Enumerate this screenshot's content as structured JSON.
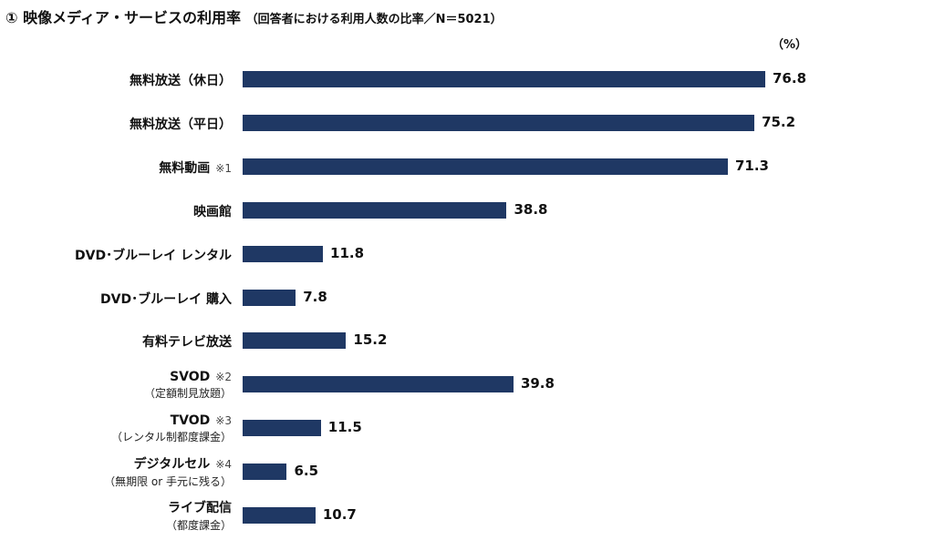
{
  "chart_data": {
    "type": "bar",
    "orientation": "horizontal",
    "title": "① 映像メディア・サービスの利用率",
    "subtitle": "（回答者における利用人数の比率／N＝5021）",
    "unit": "（%）",
    "xlim": [
      0,
      80
    ],
    "grid": false,
    "color": "#1f3864",
    "categories": [
      {
        "label": "無料放送（休日）",
        "note": "",
        "sub": ""
      },
      {
        "label": "無料放送（平日）",
        "note": "",
        "sub": ""
      },
      {
        "label": "無料動画",
        "note": "※1",
        "sub": ""
      },
      {
        "label": "映画館",
        "note": "",
        "sub": ""
      },
      {
        "label": "DVD･ブルーレイ レンタル",
        "note": "",
        "sub": ""
      },
      {
        "label": "DVD･ブルーレイ 購入",
        "note": "",
        "sub": ""
      },
      {
        "label": "有料テレビ放送",
        "note": "",
        "sub": ""
      },
      {
        "label": "SVOD",
        "note": "※2",
        "sub": "（定額制見放題）"
      },
      {
        "label": "TVOD",
        "note": "※3",
        "sub": "（レンタル制都度課金）"
      },
      {
        "label": "デジタルセル",
        "note": "※4",
        "sub": "（無期限 or 手元に残る）"
      },
      {
        "label": "ライブ配信",
        "note": "",
        "sub": "（都度課金）"
      }
    ],
    "values": [
      76.8,
      75.2,
      71.3,
      38.8,
      11.8,
      7.8,
      15.2,
      39.8,
      11.5,
      6.5,
      10.7
    ]
  }
}
